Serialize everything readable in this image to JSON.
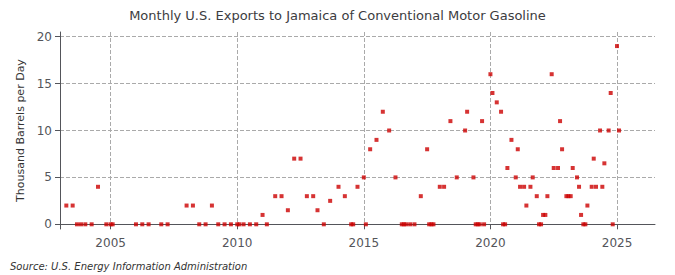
{
  "chart_data": {
    "type": "scatter",
    "title": "Monthly U.S. Exports to Jamaica of Conventional Motor Gasoline",
    "ylabel": "Thousand Barrels per Day",
    "annotations": [
      "Source: U.S. Energy Information Administration"
    ],
    "color": "#cc0000",
    "marker": "square",
    "grid": true,
    "xlim": [
      2003.0,
      2026.5
    ],
    "ylim": [
      -0.5,
      20.5
    ],
    "xticks": [
      2005,
      2010,
      2015,
      2020,
      2025
    ],
    "yticks": [
      0,
      5,
      10,
      15,
      20
    ],
    "x": [
      2003.25,
      2003.5,
      2004.5,
      2004.83,
      2005.0,
      2005.08,
      2006.0,
      2006.25,
      2006.5,
      2007.0,
      2007.25,
      2008.0,
      2008.25,
      2008.5,
      2008.75,
      2009.0,
      2009.25,
      2009.5,
      2009.75,
      2010.0,
      2010.08,
      2010.25,
      2010.5,
      2010.75,
      2011.0,
      2011.17,
      2011.5,
      2011.75,
      2012.0,
      2012.25,
      2012.5,
      2012.75,
      2013.0,
      2013.17,
      2013.42,
      2013.67,
      2014.0,
      2014.25,
      2014.5,
      2014.75,
      2015.0,
      2015.25,
      2015.5,
      2015.75,
      2016.0,
      2016.25,
      2016.5,
      2016.58,
      2016.67,
      2016.83,
      2017.0,
      2017.25,
      2017.5,
      2017.58,
      2017.67,
      2017.75,
      2018.0,
      2018.17,
      2018.42,
      2018.67,
      2019.0,
      2019.08,
      2019.33,
      2019.42,
      2019.5,
      2019.58,
      2019.67,
      2020.0,
      2020.08,
      2020.25,
      2020.42,
      2020.58,
      2020.67,
      2020.83,
      2021.0,
      2021.08,
      2021.17,
      2021.33,
      2021.42,
      2021.58,
      2021.67,
      2021.83,
      2021.92,
      2022.0,
      2022.08,
      2022.17,
      2022.25,
      2022.42,
      2022.5,
      2022.67,
      2022.75,
      2022.83,
      2023.0,
      2023.08,
      2023.17,
      2023.25,
      2023.42,
      2023.5,
      2023.58,
      2023.67,
      2023.75,
      2023.83,
      2024.0,
      2024.08,
      2024.17,
      2024.33,
      2024.42,
      2024.5,
      2024.67,
      2024.75,
      2025.0,
      2003.67,
      2003.83,
      2004.0,
      2004.25,
      2015.08,
      2014.58,
      2019.75,
      2020.5,
      2024.83,
      2025.08
    ],
    "values": [
      2.0,
      2.0,
      4.0,
      0.0,
      0.0,
      0.0,
      0.0,
      0.0,
      0.0,
      0.0,
      0.0,
      2.0,
      2.0,
      0.0,
      0.0,
      2.0,
      0.0,
      0.0,
      0.0,
      0.0,
      0.0,
      0.0,
      0.0,
      0.0,
      1.0,
      0.0,
      3.0,
      3.0,
      1.5,
      7.0,
      7.0,
      3.0,
      3.0,
      1.5,
      0.0,
      2.5,
      4.0,
      3.0,
      0.0,
      4.0,
      5.0,
      8.0,
      9.0,
      12.0,
      10.0,
      5.0,
      0.0,
      0.0,
      0.0,
      0.0,
      0.0,
      3.0,
      8.0,
      0.0,
      0.0,
      0.0,
      4.0,
      4.0,
      11.0,
      5.0,
      10.0,
      12.0,
      5.0,
      0.0,
      0.0,
      0.0,
      11.0,
      16.0,
      14.0,
      13.0,
      12.0,
      0.0,
      6.0,
      9.0,
      5.0,
      8.0,
      4.0,
      4.0,
      2.0,
      4.0,
      5.0,
      3.0,
      0.0,
      0.0,
      1.0,
      1.0,
      3.0,
      16.0,
      6.0,
      6.0,
      11.0,
      8.0,
      3.0,
      3.0,
      3.0,
      6.0,
      5.0,
      4.0,
      1.0,
      0.0,
      0.0,
      2.0,
      4.0,
      7.0,
      4.0,
      10.0,
      4.0,
      6.5,
      10.0,
      14.0,
      19.0,
      0.0,
      0.0,
      0.0,
      0.0,
      0.0,
      0.0,
      0.0,
      0.0,
      0.0,
      10.0
    ]
  }
}
